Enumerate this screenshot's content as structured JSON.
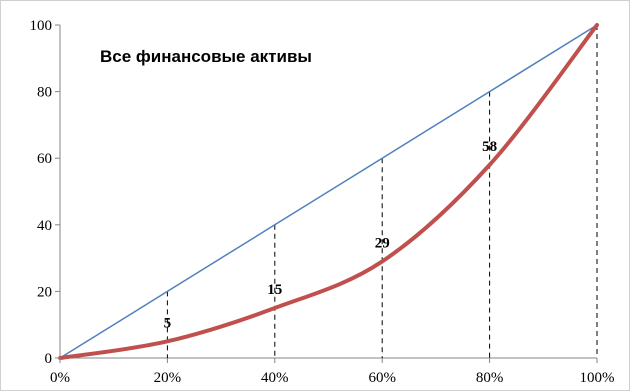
{
  "chart_data": {
    "type": "line",
    "title": "Все финансовые активы",
    "x": [
      0,
      20,
      40,
      60,
      80,
      100
    ],
    "x_tick_labels": [
      "0%",
      "20%",
      "40%",
      "60%",
      "80%",
      "100%"
    ],
    "y_tick_labels": [
      "0",
      "20",
      "40",
      "60",
      "80",
      "100"
    ],
    "xlim": [
      0,
      100
    ],
    "ylim": [
      0,
      100
    ],
    "grid": false,
    "series": [
      {
        "values": [
          0,
          20,
          40,
          60,
          80,
          100
        ],
        "color": "#4f81bd",
        "style": "equality-line"
      },
      {
        "values": [
          0,
          5,
          15,
          29,
          58,
          100
        ],
        "color": "#c0504d",
        "style": "lorenz-curve"
      }
    ],
    "drop_lines": {
      "x": [
        20,
        40,
        60,
        80,
        100
      ],
      "style": "dashed"
    },
    "data_labels": [
      {
        "x": 20,
        "y": 5,
        "text": "5"
      },
      {
        "x": 40,
        "y": 15,
        "text": "15"
      },
      {
        "x": 60,
        "y": 29,
        "text": "29"
      },
      {
        "x": 80,
        "y": 58,
        "text": "58"
      }
    ]
  }
}
